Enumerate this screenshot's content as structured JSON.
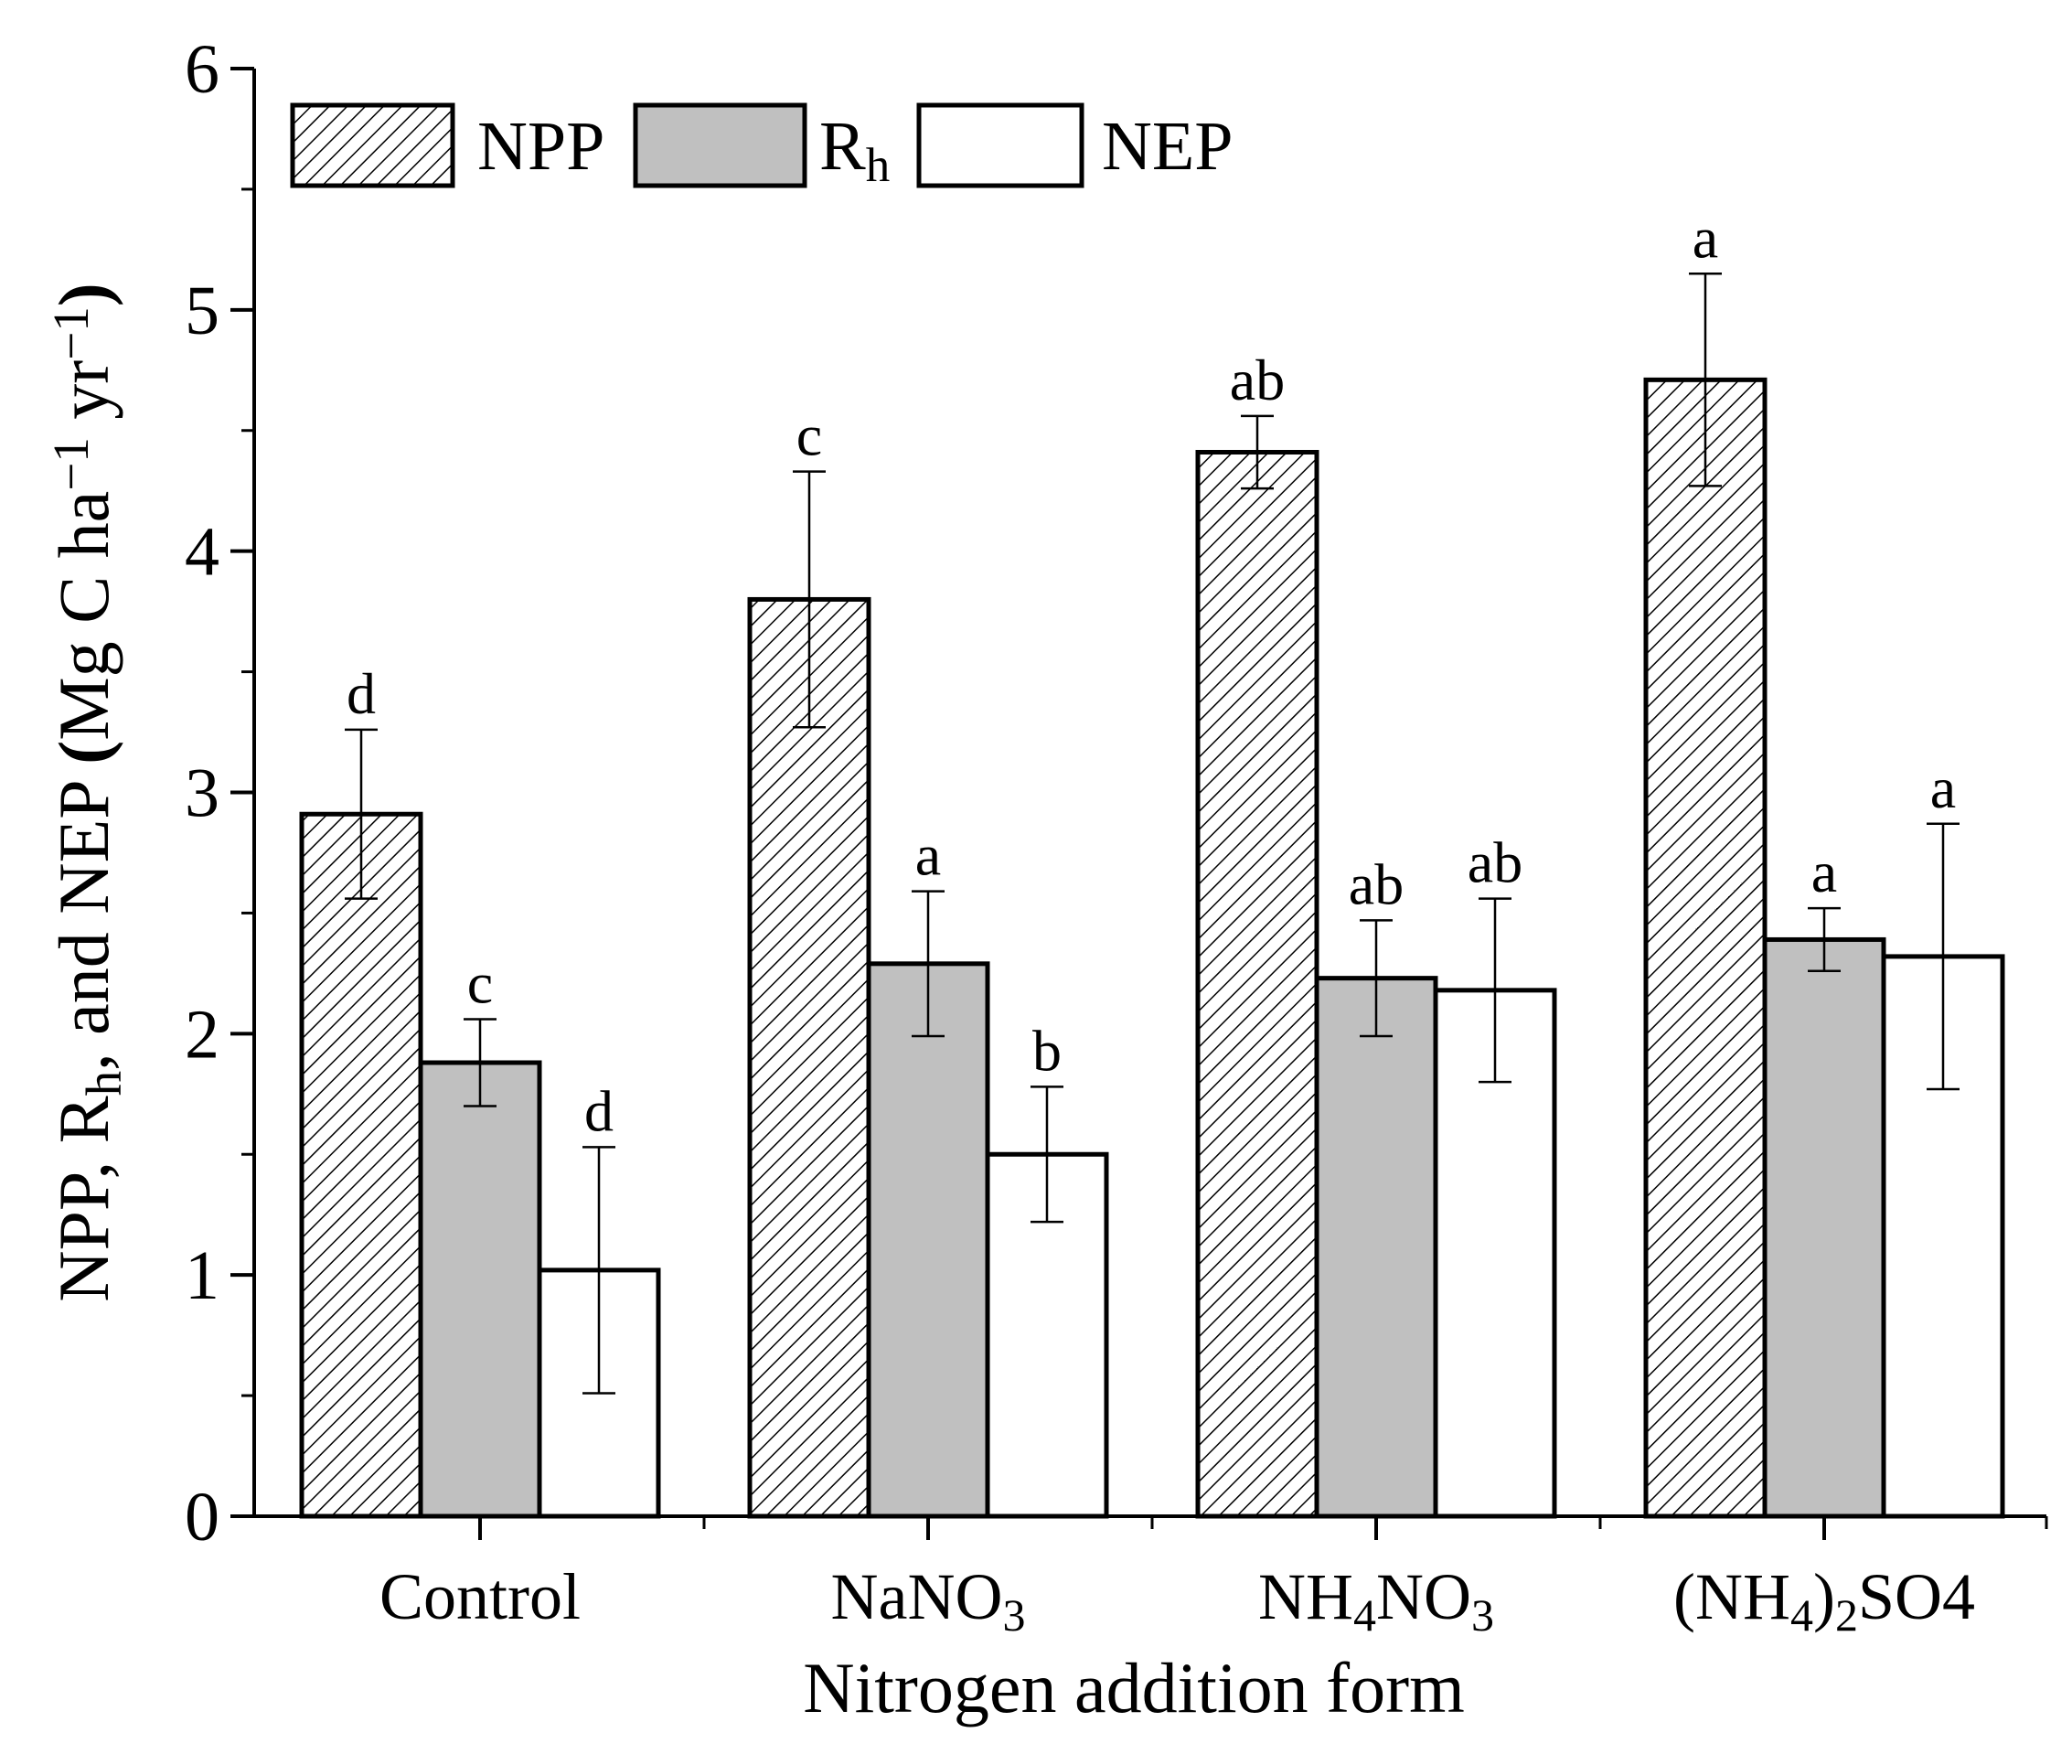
{
  "chart_data": {
    "type": "bar",
    "xlabel": "Nitrogen addition form",
    "ylabel": {
      "parts": [
        {
          "text": "NPP, R"
        },
        {
          "text": "h",
          "style": "sub"
        },
        {
          "text": ", and NEP "
        },
        {
          "text": "(",
          "style": "bold"
        },
        {
          "text": "Mg C ha"
        },
        {
          "text": "−1",
          "style": "sup"
        },
        {
          "text": " yr"
        },
        {
          "text": "−1",
          "style": "sup"
        },
        {
          "text": ")",
          "style": "bold"
        }
      ]
    },
    "ylim": [
      0,
      6
    ],
    "yticks": [
      "0",
      "1",
      "2",
      "3",
      "4",
      "5",
      "6"
    ],
    "categories": [
      {
        "parts": [
          {
            "text": "Control"
          }
        ]
      },
      {
        "parts": [
          {
            "text": "NaNO"
          },
          {
            "text": "3",
            "style": "sub"
          }
        ]
      },
      {
        "parts": [
          {
            "text": "NH"
          },
          {
            "text": "4",
            "style": "sub"
          },
          {
            "text": "NO"
          },
          {
            "text": "3",
            "style": "sub"
          }
        ]
      },
      {
        "parts": [
          {
            "text": "(NH"
          },
          {
            "text": "4",
            "style": "sub"
          },
          {
            "text": ")"
          },
          {
            "text": "2",
            "style": "sub"
          },
          {
            "text": "SO4"
          }
        ]
      }
    ],
    "series": [
      {
        "name": "NPP",
        "legend": {
          "parts": [
            {
              "text": "NPP"
            }
          ]
        },
        "fill": "hatch",
        "values": [
          2.91,
          3.8,
          4.41,
          4.71
        ],
        "errors": [
          0.35,
          0.53,
          0.15,
          0.44
        ],
        "letters": [
          "d",
          "c",
          "ab",
          "a"
        ]
      },
      {
        "name": "Rh",
        "legend": {
          "parts": [
            {
              "text": "R"
            },
            {
              "text": "h",
              "style": "sub"
            }
          ]
        },
        "fill": "#c0c0c0",
        "values": [
          1.88,
          2.29,
          2.23,
          2.39
        ],
        "errors": [
          0.18,
          0.3,
          0.24,
          0.13
        ],
        "letters": [
          "c",
          "a",
          "ab",
          "a"
        ]
      },
      {
        "name": "NEP",
        "legend": {
          "parts": [
            {
              "text": "NEP"
            }
          ]
        },
        "fill": "#ffffff",
        "values": [
          1.02,
          1.5,
          2.18,
          2.32
        ],
        "errors": [
          0.51,
          0.28,
          0.38,
          0.55
        ],
        "letters": [
          "d",
          "b",
          "ab",
          "a"
        ]
      }
    ],
    "legend_position": "top-left",
    "grid": false
  }
}
